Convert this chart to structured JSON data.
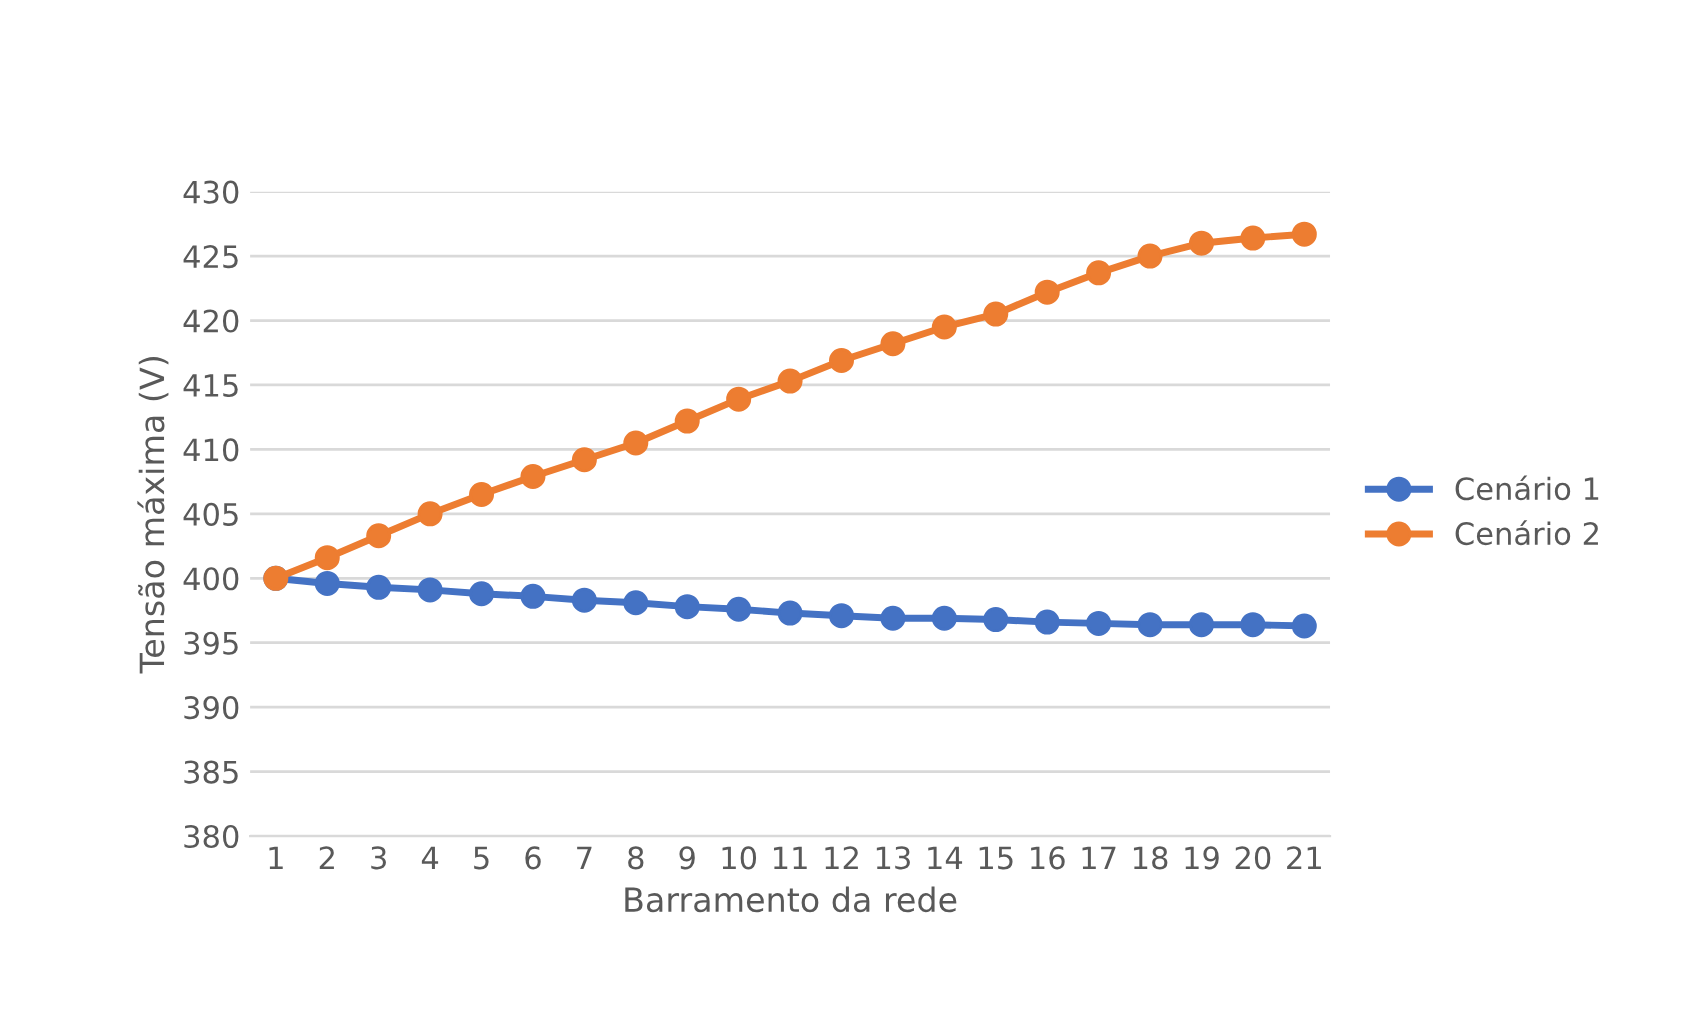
{
  "chart_data": {
    "type": "line",
    "xlabel": "Barramento da rede",
    "ylabel": "Tensão máxima (V)",
    "categories": [
      "1",
      "2",
      "3",
      "4",
      "5",
      "6",
      "7",
      "8",
      "9",
      "10",
      "11",
      "12",
      "13",
      "14",
      "15",
      "16",
      "17",
      "18",
      "19",
      "20",
      "21"
    ],
    "series": [
      {
        "name": "Cenário 1",
        "color": "#4472c4",
        "values": [
          400,
          399.6,
          399.3,
          399.1,
          398.8,
          398.6,
          398.3,
          398.1,
          397.8,
          397.6,
          397.3,
          397.1,
          396.9,
          396.9,
          396.8,
          396.6,
          396.5,
          396.4,
          396.4,
          396.4,
          396.3
        ]
      },
      {
        "name": "Cenário 2",
        "color": "#ed7d31",
        "values": [
          400,
          401.6,
          403.3,
          405,
          406.5,
          407.9,
          409.2,
          410.5,
          412.2,
          413.9,
          415.3,
          416.9,
          418.2,
          419.5,
          420.5,
          422.2,
          423.7,
          425,
          426,
          426.4,
          426.7
        ]
      }
    ],
    "ylim": [
      380,
      430
    ],
    "yticks": [
      380,
      385,
      390,
      395,
      400,
      405,
      410,
      415,
      420,
      425,
      430
    ],
    "grid": "y",
    "legend": "right",
    "marker": "circle",
    "line_style": "solid"
  }
}
